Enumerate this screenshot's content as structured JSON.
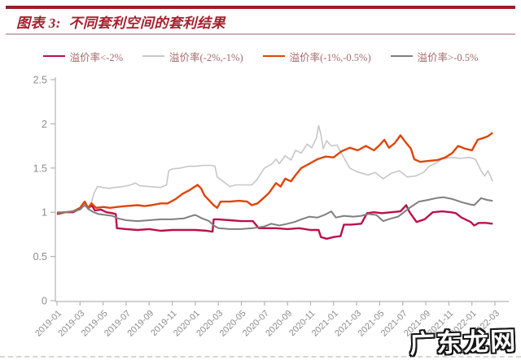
{
  "header": {
    "title": "图表 3:  不同套利空间的套利结果"
  },
  "watermark": {
    "text": "广东龙网"
  },
  "style": {
    "accent_bar_color": "#9e1c28",
    "title_color": "#a6202e",
    "under_title_rule_color": "#c9b2b4",
    "legend_text_color": "#a5696b",
    "axis_color": "#b3b3b3",
    "tick_label_color": "#8c8c8c"
  },
  "chart_data": {
    "type": "line",
    "figure_label": "图表 3",
    "title": "不同套利空间的套利结果",
    "xlabel": "",
    "ylabel": "",
    "ylim": [
      0,
      2.5
    ],
    "y_ticks": [
      0,
      0.5,
      1,
      1.5,
      2,
      2.5
    ],
    "grid": false,
    "legend_position": "top",
    "x_unit": "months since 2019-01",
    "x_range_months": 38,
    "x_tick_step_months": 2,
    "x_tick_labels": [
      "2019-01",
      "2019-03",
      "2019-05",
      "2019-07",
      "2019-09",
      "2019-11",
      "2020-01",
      "2020-03",
      "2020-05",
      "2020-07",
      "2020-09",
      "2020-11",
      "2021-01",
      "2021-03",
      "2021-05",
      "2021-07",
      "2021-09",
      "2021-11",
      "2022-01",
      "2022-03"
    ],
    "series": [
      {
        "name": "溢价率<-2%",
        "color": "#bc1049",
        "line_width": 2.4,
        "points": [
          [
            0,
            0.98
          ],
          [
            0.7,
            1.0
          ],
          [
            1.4,
            1.0
          ],
          [
            2,
            1.04
          ],
          [
            2.4,
            1.1
          ],
          [
            2.7,
            1.04
          ],
          [
            3,
            1.08
          ],
          [
            3.3,
            1.02
          ],
          [
            3.8,
            1.03
          ],
          [
            4.3,
            1.0
          ],
          [
            4.8,
            0.99
          ],
          [
            5.1,
            0.98
          ],
          [
            5.2,
            0.82
          ],
          [
            6,
            0.81
          ],
          [
            7,
            0.8
          ],
          [
            8,
            0.81
          ],
          [
            9,
            0.79
          ],
          [
            10,
            0.8
          ],
          [
            11,
            0.8
          ],
          [
            12,
            0.8
          ],
          [
            13,
            0.79
          ],
          [
            13.5,
            0.78
          ],
          [
            13.6,
            0.92
          ],
          [
            14,
            0.92
          ],
          [
            15,
            0.91
          ],
          [
            16,
            0.9
          ],
          [
            16.5,
            0.9
          ],
          [
            17,
            0.9
          ],
          [
            17.5,
            0.82
          ],
          [
            18,
            0.82
          ],
          [
            19,
            0.82
          ],
          [
            20,
            0.81
          ],
          [
            21,
            0.82
          ],
          [
            22,
            0.8
          ],
          [
            22.7,
            0.8
          ],
          [
            22.9,
            0.72
          ],
          [
            23.4,
            0.7
          ],
          [
            24,
            0.72
          ],
          [
            24.6,
            0.73
          ],
          [
            24.9,
            0.86
          ],
          [
            25.5,
            0.86
          ],
          [
            26.4,
            0.87
          ],
          [
            26.9,
            0.99
          ],
          [
            27.5,
            1.0
          ],
          [
            28.2,
            0.99
          ],
          [
            29,
            1.0
          ],
          [
            29.8,
            1.01
          ],
          [
            30.3,
            1.08
          ],
          [
            30.6,
            1.0
          ],
          [
            31.2,
            0.89
          ],
          [
            31.9,
            0.92
          ],
          [
            32.6,
            1.0
          ],
          [
            33.4,
            1.01
          ],
          [
            34.2,
            1.0
          ],
          [
            34.6,
            0.99
          ],
          [
            35.1,
            0.94
          ],
          [
            35.9,
            0.89
          ],
          [
            36.2,
            0.85
          ],
          [
            36.6,
            0.88
          ],
          [
            37.2,
            0.88
          ],
          [
            37.8,
            0.87
          ]
        ]
      },
      {
        "name": "溢价率(-2%,-1%)",
        "color": "#c7c7c7",
        "line_width": 1.6,
        "points": [
          [
            0,
            1.0
          ],
          [
            0.7,
            1.0
          ],
          [
            1.4,
            1.01
          ],
          [
            2,
            1.03
          ],
          [
            2.4,
            1.09
          ],
          [
            2.7,
            1.03
          ],
          [
            3,
            1.12
          ],
          [
            3.2,
            1.21
          ],
          [
            3.5,
            1.29
          ],
          [
            4,
            1.28
          ],
          [
            4.5,
            1.27
          ],
          [
            5,
            1.28
          ],
          [
            5.7,
            1.29
          ],
          [
            6.4,
            1.31
          ],
          [
            6.8,
            1.33
          ],
          [
            7.2,
            1.3
          ],
          [
            8,
            1.29
          ],
          [
            9,
            1.28
          ],
          [
            9.5,
            1.31
          ],
          [
            9.7,
            1.47
          ],
          [
            10,
            1.49
          ],
          [
            10.7,
            1.5
          ],
          [
            11.4,
            1.52
          ],
          [
            12,
            1.52
          ],
          [
            12.7,
            1.53
          ],
          [
            13.4,
            1.53
          ],
          [
            13.7,
            1.52
          ],
          [
            13.9,
            1.4
          ],
          [
            14.3,
            1.36
          ],
          [
            15,
            1.29
          ],
          [
            15.5,
            1.31
          ],
          [
            16.2,
            1.31
          ],
          [
            16.9,
            1.31
          ],
          [
            17.3,
            1.36
          ],
          [
            17.7,
            1.44
          ],
          [
            18,
            1.5
          ],
          [
            18.6,
            1.54
          ],
          [
            19,
            1.6
          ],
          [
            19.3,
            1.55
          ],
          [
            19.8,
            1.64
          ],
          [
            20.3,
            1.59
          ],
          [
            20.7,
            1.7
          ],
          [
            21.2,
            1.67
          ],
          [
            21.7,
            1.77
          ],
          [
            22.1,
            1.73
          ],
          [
            22.5,
            1.84
          ],
          [
            22.7,
            1.98
          ],
          [
            22.9,
            1.88
          ],
          [
            23.1,
            1.72
          ],
          [
            23.4,
            1.81
          ],
          [
            23.8,
            1.75
          ],
          [
            24.3,
            1.76
          ],
          [
            24.8,
            1.64
          ],
          [
            25.4,
            1.5
          ],
          [
            26,
            1.46
          ],
          [
            26.5,
            1.44
          ],
          [
            27,
            1.42
          ],
          [
            27.6,
            1.45
          ],
          [
            28.3,
            1.38
          ],
          [
            29,
            1.44
          ],
          [
            29.7,
            1.47
          ],
          [
            30.4,
            1.4
          ],
          [
            31.1,
            1.41
          ],
          [
            31.8,
            1.45
          ],
          [
            32.3,
            1.52
          ],
          [
            32.8,
            1.55
          ],
          [
            33.4,
            1.6
          ],
          [
            34.2,
            1.62
          ],
          [
            35,
            1.61
          ],
          [
            35.8,
            1.62
          ],
          [
            36.3,
            1.6
          ],
          [
            36.8,
            1.47
          ],
          [
            37.1,
            1.41
          ],
          [
            37.4,
            1.47
          ],
          [
            37.8,
            1.35
          ]
        ]
      },
      {
        "name": "溢价率(-1%,-0.5%)",
        "color": "#dd450b",
        "line_width": 2.4,
        "points": [
          [
            0,
            0.99
          ],
          [
            0.7,
            1.0
          ],
          [
            1.4,
            1.01
          ],
          [
            2,
            1.05
          ],
          [
            2.4,
            1.12
          ],
          [
            2.7,
            1.05
          ],
          [
            3,
            1.1
          ],
          [
            3.4,
            1.05
          ],
          [
            4,
            1.06
          ],
          [
            4.6,
            1.05
          ],
          [
            5.2,
            1.06
          ],
          [
            6,
            1.07
          ],
          [
            7,
            1.08
          ],
          [
            7.6,
            1.07
          ],
          [
            8.2,
            1.08
          ],
          [
            9,
            1.1
          ],
          [
            9.6,
            1.1
          ],
          [
            10.3,
            1.15
          ],
          [
            10.9,
            1.21
          ],
          [
            11.5,
            1.25
          ],
          [
            12.2,
            1.31
          ],
          [
            12.5,
            1.27
          ],
          [
            12.8,
            1.19
          ],
          [
            13.3,
            1.12
          ],
          [
            13.6,
            1.08
          ],
          [
            13.9,
            1.05
          ],
          [
            14.2,
            1.12
          ],
          [
            15,
            1.12
          ],
          [
            15.8,
            1.13
          ],
          [
            16.5,
            1.12
          ],
          [
            16.9,
            1.08
          ],
          [
            17.4,
            1.1
          ],
          [
            18,
            1.17
          ],
          [
            18.4,
            1.22
          ],
          [
            19,
            1.33
          ],
          [
            19.4,
            1.29
          ],
          [
            19.8,
            1.38
          ],
          [
            20.3,
            1.35
          ],
          [
            20.7,
            1.42
          ],
          [
            21.2,
            1.5
          ],
          [
            21.9,
            1.55
          ],
          [
            22.6,
            1.6
          ],
          [
            23.3,
            1.63
          ],
          [
            24,
            1.62
          ],
          [
            24.7,
            1.69
          ],
          [
            25.4,
            1.73
          ],
          [
            26.1,
            1.7
          ],
          [
            26.8,
            1.75
          ],
          [
            27.5,
            1.7
          ],
          [
            28,
            1.76
          ],
          [
            28.4,
            1.82
          ],
          [
            28.8,
            1.73
          ],
          [
            29.3,
            1.78
          ],
          [
            29.8,
            1.87
          ],
          [
            30.2,
            1.8
          ],
          [
            30.7,
            1.72
          ],
          [
            31,
            1.6
          ],
          [
            31.5,
            1.57
          ],
          [
            32.2,
            1.58
          ],
          [
            33,
            1.59
          ],
          [
            33.7,
            1.62
          ],
          [
            34.3,
            1.67
          ],
          [
            34.8,
            1.75
          ],
          [
            35.4,
            1.72
          ],
          [
            36,
            1.7
          ],
          [
            36.5,
            1.82
          ],
          [
            37,
            1.84
          ],
          [
            37.4,
            1.86
          ],
          [
            37.8,
            1.9
          ]
        ]
      },
      {
        "name": "溢价率>-0.5%",
        "color": "#7f7f7f",
        "line_width": 2.0,
        "points": [
          [
            0,
            1.0
          ],
          [
            0.7,
            1.0
          ],
          [
            1.4,
            1.01
          ],
          [
            2,
            1.03
          ],
          [
            2.4,
            1.08
          ],
          [
            2.8,
            1.03
          ],
          [
            3.2,
            1.0
          ],
          [
            3.6,
            0.98
          ],
          [
            4.2,
            0.97
          ],
          [
            4.8,
            0.96
          ],
          [
            5.3,
            0.93
          ],
          [
            6,
            0.91
          ],
          [
            7,
            0.9
          ],
          [
            8,
            0.91
          ],
          [
            9,
            0.92
          ],
          [
            10,
            0.92
          ],
          [
            11,
            0.93
          ],
          [
            11.7,
            0.96
          ],
          [
            12,
            0.97
          ],
          [
            12.6,
            0.93
          ],
          [
            13.2,
            0.9
          ],
          [
            13.6,
            0.85
          ],
          [
            14,
            0.82
          ],
          [
            15,
            0.81
          ],
          [
            16,
            0.81
          ],
          [
            17,
            0.82
          ],
          [
            18,
            0.84
          ],
          [
            18.6,
            0.87
          ],
          [
            19.3,
            0.85
          ],
          [
            20,
            0.87
          ],
          [
            20.6,
            0.89
          ],
          [
            21.2,
            0.92
          ],
          [
            21.9,
            0.95
          ],
          [
            22.6,
            0.94
          ],
          [
            23.2,
            0.97
          ],
          [
            23.8,
            1.01
          ],
          [
            24.2,
            0.94
          ],
          [
            24.9,
            0.96
          ],
          [
            25.7,
            0.95
          ],
          [
            26.4,
            0.96
          ],
          [
            27,
            0.98
          ],
          [
            27.7,
            0.97
          ],
          [
            28.3,
            0.9
          ],
          [
            29,
            0.93
          ],
          [
            29.6,
            0.95
          ],
          [
            30.1,
            1.0
          ],
          [
            30.7,
            1.06
          ],
          [
            31.4,
            1.12
          ],
          [
            32.2,
            1.14
          ],
          [
            32.9,
            1.16
          ],
          [
            33.5,
            1.17
          ],
          [
            34.3,
            1.15
          ],
          [
            35.2,
            1.11
          ],
          [
            35.8,
            1.09
          ],
          [
            36.2,
            1.08
          ],
          [
            36.8,
            1.16
          ],
          [
            37.3,
            1.14
          ],
          [
            37.8,
            1.13
          ]
        ]
      }
    ]
  }
}
